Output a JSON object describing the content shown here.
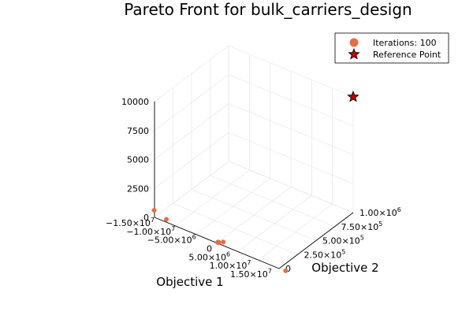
{
  "chart_data": {
    "type": "scatter",
    "projection": "3d",
    "title": "Pareto Front for bulk_carriers_design",
    "xlabel": "Objective 1",
    "ylabel": "Objective 2",
    "zlabel": "",
    "x_ticks": [
      {
        "value": -15000000,
        "label": "−1.50×10",
        "exp": "7"
      },
      {
        "value": -10000000,
        "label": "−1.00×10",
        "exp": "7"
      },
      {
        "value": -5000000,
        "label": "−5.00×10",
        "exp": "6"
      },
      {
        "value": 0,
        "label": "0",
        "exp": ""
      },
      {
        "value": 5000000,
        "label": "5.00×10",
        "exp": "6"
      },
      {
        "value": 10000000,
        "label": "1.00×10",
        "exp": "7"
      },
      {
        "value": 15000000,
        "label": "1.50×10",
        "exp": "7"
      }
    ],
    "y_ticks": [
      {
        "value": 0,
        "label": "0",
        "exp": ""
      },
      {
        "value": 250000,
        "label": "2.50×10",
        "exp": "5"
      },
      {
        "value": 500000,
        "label": "5.00×10",
        "exp": "5"
      },
      {
        "value": 750000,
        "label": "7.50×10",
        "exp": "5"
      },
      {
        "value": 1000000,
        "label": "1.00×10",
        "exp": "6"
      }
    ],
    "z_ticks": [
      {
        "value": 0,
        "label": "0"
      },
      {
        "value": 2500,
        "label": "2500"
      },
      {
        "value": 5000,
        "label": "5000"
      },
      {
        "value": 7500,
        "label": "7500"
      },
      {
        "value": 10000,
        "label": "10000"
      }
    ],
    "xlim": [
      -15000000,
      15000000
    ],
    "ylim": [
      0,
      1000000
    ],
    "zlim": [
      0,
      10000
    ],
    "grid": true,
    "legend_position": "top-right",
    "series": [
      {
        "name": "Iterations: 100",
        "marker": "circle",
        "color": "#e26f46",
        "points": [
          {
            "x": -15800000,
            "y": 40000,
            "z": 300
          },
          {
            "x": -12500000,
            "y": 20000,
            "z": 100
          },
          {
            "x": 100000,
            "y": 8000,
            "z": 30
          },
          {
            "x": 200000,
            "y": 9000,
            "z": 28
          },
          {
            "x": 150000,
            "y": 10000,
            "z": 35
          },
          {
            "x": 250000,
            "y": 7000,
            "z": 25
          },
          {
            "x": 180000,
            "y": 8500,
            "z": 40
          },
          {
            "x": 120000,
            "y": 9500,
            "z": 22
          },
          {
            "x": 220000,
            "y": 6500,
            "z": 45
          },
          {
            "x": 160000,
            "y": 11000,
            "z": 30
          },
          {
            "x": 140000,
            "y": 5500,
            "z": 50
          },
          {
            "x": 230000,
            "y": 12000,
            "z": 20
          },
          {
            "x": 110000,
            "y": 6000,
            "z": 38
          },
          {
            "x": 260000,
            "y": 10500,
            "z": 42
          },
          {
            "x": 190000,
            "y": 4500,
            "z": 55
          },
          {
            "x": 130000,
            "y": 12500,
            "z": 18
          },
          {
            "x": 210000,
            "y": 5000,
            "z": 33
          },
          {
            "x": 170000,
            "y": 7500,
            "z": 48
          },
          {
            "x": 240000,
            "y": 8000,
            "z": 26
          },
          {
            "x": 150000,
            "y": 4000,
            "z": 60
          },
          {
            "x": 1100000,
            "y": 25000,
            "z": 120
          },
          {
            "x": 16500000,
            "y": 5000,
            "z": 10
          }
        ]
      },
      {
        "name": "Reference Point",
        "marker": "star",
        "color": "#c00000",
        "points": [
          {
            "x": 15000000,
            "y": 1000000,
            "z": 10000
          }
        ]
      }
    ]
  }
}
